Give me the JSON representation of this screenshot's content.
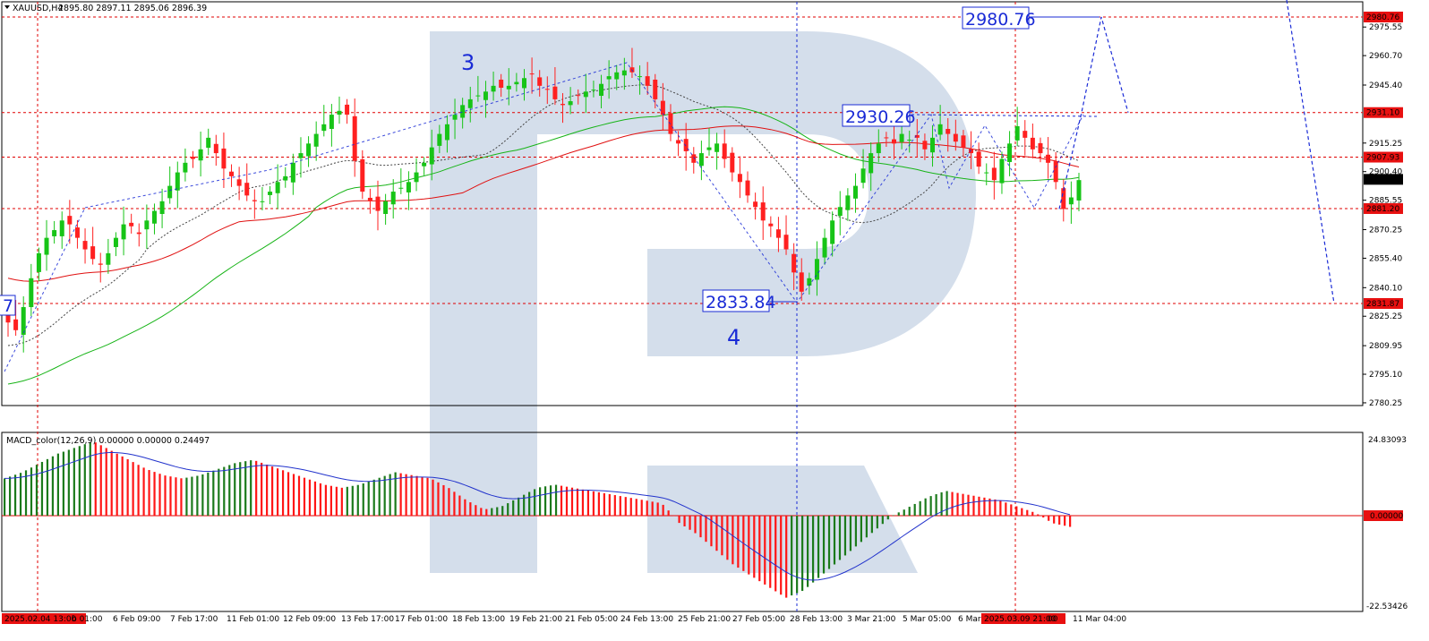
{
  "header": {
    "symbol": "XAUUSD,H4",
    "ohlc": "2895.80 2897.11 2895.06 2896.39",
    "macd_label": "MACD_color(12,26,9) 0.00000 0.00000 0.24497"
  },
  "colors": {
    "bull": "#17c417",
    "bear": "#ff2020",
    "ma_fast": "#444444",
    "ma_mid": "#17b417",
    "ma_slow": "#e01010",
    "forecast": "#1a2bd6",
    "level_line": "#e00000",
    "macd_pos_up": "#1b7a1b",
    "macd_neg": "#ff1515",
    "signal": "#2233cc",
    "watermark": "#cfdae9",
    "price_tag": "#e81010"
  },
  "annotations": {
    "wave_3": "3",
    "wave_4": "4",
    "box_high": "2980.76",
    "box_mid": "2930.26",
    "box_low": "2833.84",
    "box_left_partial": "7"
  },
  "price_axis": {
    "ticks": [
      "2975.55",
      "2960.70",
      "2945.40",
      "2915.25",
      "2900.40",
      "2885.55",
      "2870.25",
      "2855.40",
      "2840.10",
      "2825.25",
      "2809.95",
      "2795.10",
      "2780.25"
    ],
    "tags": [
      {
        "value": "2980.76",
        "kind": "red"
      },
      {
        "value": "2931.10",
        "kind": "red"
      },
      {
        "value": "2907.93",
        "kind": "red"
      },
      {
        "value": "2896.39",
        "kind": "current"
      },
      {
        "value": "2881.20",
        "kind": "red"
      },
      {
        "value": "2831.87",
        "kind": "red"
      }
    ]
  },
  "macd_axis": {
    "top": "24.83093",
    "zero": "0.00000",
    "bottom": "-22.53426"
  },
  "time_axis": {
    "labels": [
      "2025.02.04 13:00",
      "b 01:00",
      "6 Feb 09:00",
      "7 Feb 17:00",
      "11 Feb 01:00",
      "12 Feb 09:00",
      "13 Feb 17:00",
      "17 Feb 01:00",
      "18 Feb 13:00",
      "19 Feb 21:00",
      "21 Feb 05:00",
      "24 Feb 13:00",
      "25 Feb 21:00",
      "27 Feb 05:00",
      "28 Feb 13:00",
      "3 Mar 21:00",
      "5 Mar 05:00",
      "6 Mar",
      "2025.03.09 21:00",
      "00",
      "11 Mar 04:00"
    ]
  },
  "chart_data": {
    "type": "candlestick",
    "title": "XAUUSD,H4",
    "ylim": [
      2775,
      2985
    ],
    "hlines": [
      2980.76,
      2931.1,
      2907.93,
      2881.2,
      2831.87
    ],
    "close_path": [
      2822,
      2818,
      2830,
      2845,
      2858,
      2866,
      2870,
      2875,
      2873,
      2866,
      2860,
      2855,
      2852,
      2858,
      2866,
      2873,
      2872,
      2868,
      2875,
      2880,
      2885,
      2893,
      2900,
      2905,
      2907,
      2912,
      2918,
      2910,
      2902,
      2898,
      2893,
      2888,
      2885,
      2885,
      2890,
      2895,
      2898,
      2905,
      2910,
      2915,
      2920,
      2925,
      2930,
      2932,
      2930,
      2906,
      2890,
      2885,
      2880,
      2885,
      2890,
      2892,
      2895,
      2900,
      2905,
      2913,
      2920,
      2925,
      2930,
      2935,
      2938,
      2940,
      2942,
      2945,
      2944,
      2945,
      2947,
      2949,
      2951,
      2945,
      2943,
      2938,
      2935,
      2937,
      2940,
      2942,
      2943,
      2946,
      2950,
      2952,
      2953,
      2952,
      2950,
      2945,
      2938,
      2930,
      2920,
      2915,
      2911,
      2905,
      2910,
      2913,
      2915,
      2907,
      2900,
      2895,
      2888,
      2882,
      2875,
      2872,
      2866,
      2860,
      2848,
      2838,
      2845,
      2855,
      2866,
      2875,
      2882,
      2888,
      2893,
      2902,
      2910,
      2915,
      2918,
      2915,
      2920,
      2917,
      2918,
      2912,
      2918,
      2925,
      2920,
      2916,
      2913,
      2910,
      2903,
      2900,
      2896,
      2907,
      2915,
      2924,
      2918,
      2912,
      2910,
      2905,
      2895,
      2881,
      2887,
      2896
    ],
    "forecast_path": [
      [
        2933,
        2881
      ],
      [
        2931.1,
        2931
      ],
      [
        2980.76,
        2960
      ],
      [
        2931.1,
        2931
      ]
    ],
    "macd": {
      "ylim": [
        -22.53426,
        24.83093
      ],
      "histogram_pattern": [
        12,
        14,
        17,
        20,
        22,
        24,
        21,
        18,
        15,
        13,
        12,
        13,
        15,
        17,
        18,
        16,
        14,
        12,
        10,
        9,
        10,
        12,
        14,
        13,
        12,
        9,
        5,
        2,
        3,
        6,
        9,
        10,
        9,
        8,
        7,
        6,
        5,
        4,
        -2,
        -5,
        -9,
        -13,
        -16,
        -19,
        -22,
        -20,
        -16,
        -12,
        -8,
        -4,
        0,
        3,
        6,
        8,
        7,
        6,
        5,
        3,
        1,
        -2,
        -3
      ]
    }
  }
}
